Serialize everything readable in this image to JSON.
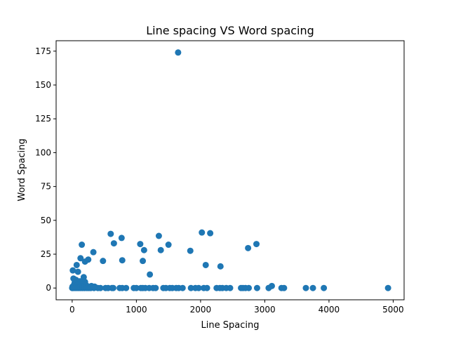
{
  "chart_data": {
    "type": "scatter",
    "title": "Line spacing VS Word spacing",
    "xlabel": "Line Spacing",
    "ylabel": "Word Spacing",
    "xlim": [
      -250,
      5170
    ],
    "ylim": [
      -8.7,
      182.7
    ],
    "xticks": [
      0,
      1000,
      2000,
      3000,
      4000,
      5000
    ],
    "yticks": [
      0,
      25,
      50,
      75,
      100,
      125,
      150,
      175
    ],
    "grid": false,
    "legend": "none",
    "marker_color": "#1f77b4",
    "points": [
      [
        1650,
        174
      ],
      [
        600,
        40
      ],
      [
        650,
        33
      ],
      [
        770,
        37
      ],
      [
        780,
        20.5
      ],
      [
        1060,
        32.5
      ],
      [
        1100,
        20
      ],
      [
        1120,
        28
      ],
      [
        1210,
        10
      ],
      [
        1350,
        38.5
      ],
      [
        1380,
        28
      ],
      [
        1500,
        32
      ],
      [
        1840,
        27.5
      ],
      [
        2020,
        41
      ],
      [
        2080,
        17
      ],
      [
        2150,
        40.5
      ],
      [
        2310,
        16
      ],
      [
        2740,
        29.5
      ],
      [
        2870,
        32.5
      ],
      [
        150,
        32
      ],
      [
        330,
        26.5
      ],
      [
        480,
        20
      ],
      [
        250,
        21
      ],
      [
        200,
        19.5
      ],
      [
        130,
        22
      ],
      [
        70,
        17
      ],
      [
        10,
        13
      ],
      [
        90,
        12
      ],
      [
        20,
        7
      ],
      [
        180,
        8
      ],
      [
        60,
        6
      ],
      [
        120,
        5
      ],
      [
        40,
        4
      ],
      [
        200,
        4.5
      ],
      [
        100,
        3
      ],
      [
        160,
        3
      ],
      [
        30,
        2.5
      ],
      [
        80,
        2
      ],
      [
        220,
        2
      ],
      [
        140,
        1.5
      ],
      [
        300,
        1.5
      ],
      [
        350,
        1
      ],
      [
        5,
        1
      ],
      [
        50,
        0.5
      ],
      [
        0,
        0
      ],
      [
        15,
        0
      ],
      [
        45,
        0
      ],
      [
        75,
        0
      ],
      [
        105,
        0
      ],
      [
        135,
        0
      ],
      [
        165,
        0
      ],
      [
        195,
        0
      ],
      [
        230,
        0
      ],
      [
        260,
        0
      ],
      [
        290,
        0
      ],
      [
        340,
        0
      ],
      [
        400,
        0
      ],
      [
        440,
        0
      ],
      [
        520,
        0
      ],
      [
        560,
        0
      ],
      [
        620,
        0
      ],
      [
        640,
        0
      ],
      [
        740,
        0
      ],
      [
        780,
        0
      ],
      [
        840,
        0
      ],
      [
        960,
        0
      ],
      [
        1000,
        0
      ],
      [
        1070,
        0
      ],
      [
        1100,
        0
      ],
      [
        1140,
        0
      ],
      [
        1200,
        0
      ],
      [
        1260,
        0
      ],
      [
        1300,
        0
      ],
      [
        1420,
        0
      ],
      [
        1460,
        0
      ],
      [
        1520,
        0
      ],
      [
        1560,
        0
      ],
      [
        1620,
        0
      ],
      [
        1660,
        0
      ],
      [
        1720,
        0
      ],
      [
        1850,
        0
      ],
      [
        1920,
        0
      ],
      [
        1970,
        0
      ],
      [
        2050,
        0
      ],
      [
        2100,
        0
      ],
      [
        2250,
        0
      ],
      [
        2300,
        0
      ],
      [
        2340,
        0
      ],
      [
        2400,
        0
      ],
      [
        2460,
        0
      ],
      [
        2630,
        0
      ],
      [
        2660,
        0
      ],
      [
        2700,
        0
      ],
      [
        2750,
        0
      ],
      [
        2880,
        0
      ],
      [
        3060,
        0
      ],
      [
        3110,
        1.5
      ],
      [
        3260,
        0
      ],
      [
        3300,
        0
      ],
      [
        3640,
        0
      ],
      [
        3750,
        0
      ],
      [
        3920,
        0
      ],
      [
        4920,
        0
      ]
    ]
  }
}
